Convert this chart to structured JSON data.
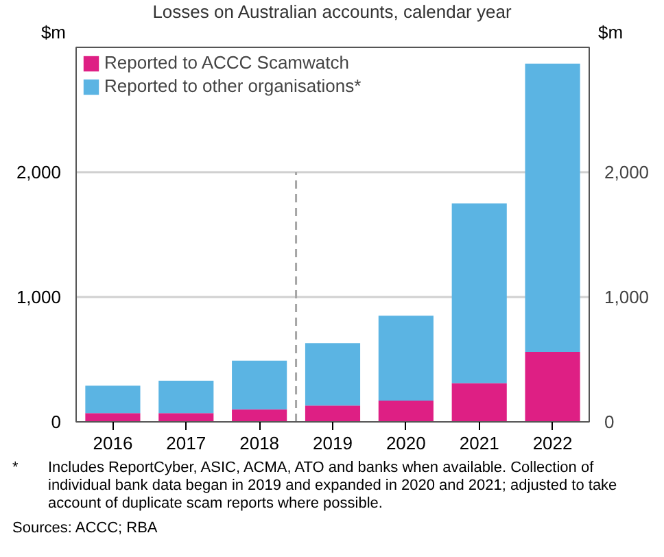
{
  "chart_data": {
    "type": "bar",
    "title": "Losses on Australian accounts, calendar year",
    "ylabel": "$m",
    "y2label": "$m",
    "x": [
      2016,
      2017,
      2018,
      2019,
      2020,
      2021,
      2022
    ],
    "xlim": [
      2015.5,
      2022.5
    ],
    "xticks": [
      2016,
      2017,
      2018,
      2019,
      2020,
      2021,
      2022
    ],
    "stacked": true,
    "series": [
      {
        "name": "Reported to ACCC Scamwatch",
        "color": "#de1f84",
        "values": [
          70,
          70,
          100,
          130,
          170,
          310,
          560
        ]
      },
      {
        "name": "Reported to other organisations*",
        "color": "#5bb4e3",
        "values": [
          220,
          260,
          390,
          500,
          680,
          1440,
          2310
        ]
      }
    ],
    "ylim": [
      0,
      3000
    ],
    "yticks": [
      0,
      {
        "value": 1000,
        "label": "1,000"
      },
      {
        "value": 2000,
        "label": "2,000"
      }
    ],
    "y2lim": [
      0,
      3000
    ],
    "y2ticks": [
      0,
      {
        "value": 1000,
        "label": "1,000"
      },
      {
        "value": 2000,
        "label": "2,000"
      }
    ],
    "grid": "y",
    "legend": "top left",
    "ref_lines": [
      {
        "axis": "x",
        "value": 2018.5,
        "color": "#a6a6a6",
        "line_style": "dashed"
      }
    ],
    "annotations": [
      "* Includes ReportCyber, ASIC, ACMA, ATO and banks when available. Collection of individual bank data began in 2019 and expanded in 2020 and 2021; adjusted to take account of duplicate scam reports where possible.",
      "Sources: ACCC; RBA"
    ]
  }
}
